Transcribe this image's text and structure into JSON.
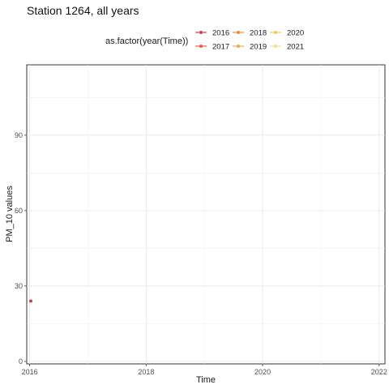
{
  "chart_data": {
    "type": "line",
    "title": "Station 1264, all years",
    "xlabel": "Time",
    "ylabel": "PM_10 values",
    "legend": {
      "title": "as.factor(year(Time))",
      "placement": "top",
      "entries": [
        {
          "label": "2016",
          "color": "#d6404e"
        },
        {
          "label": "2017",
          "color": "#ea5a3d"
        },
        {
          "label": "2018",
          "color": "#ef8a3a"
        },
        {
          "label": "2019",
          "color": "#f4a64a"
        },
        {
          "label": "2020",
          "color": "#f5c659"
        },
        {
          "label": "2021",
          "color": "#f2dc8c"
        }
      ]
    },
    "xlim": [
      2015.95,
      2022.1
    ],
    "ylim": [
      -1,
      118
    ],
    "x_ticks": [
      "2016",
      "2018",
      "2020",
      "2022"
    ],
    "x_tick_values": [
      2016,
      2018,
      2020,
      2022
    ],
    "y_ticks": [
      "0",
      "30",
      "60",
      "90"
    ],
    "y_tick_values": [
      0,
      30,
      60,
      90
    ],
    "grid": true,
    "series": [
      {
        "name": "2016",
        "color": "#d6404e",
        "points": [
          {
            "x": 2016.02,
            "y": 24
          }
        ]
      }
    ]
  }
}
